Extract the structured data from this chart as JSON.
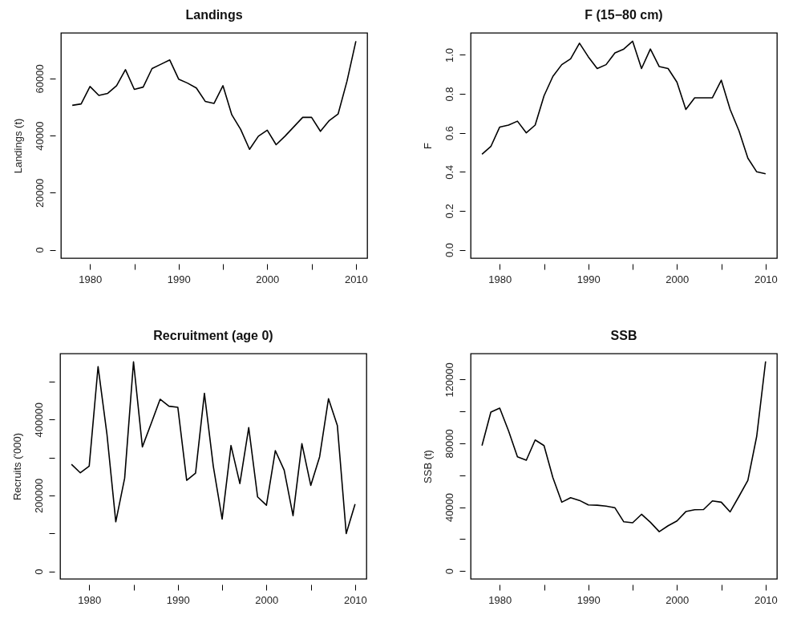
{
  "chart_data": [
    {
      "type": "line",
      "title": "Landings",
      "ylabel": "Landings (t)",
      "color": "#000000",
      "x": [
        1978,
        1979,
        1980,
        1981,
        1982,
        1983,
        1984,
        1985,
        1986,
        1987,
        1988,
        1989,
        1990,
        1991,
        1992,
        1993,
        1994,
        1995,
        1996,
        1997,
        1998,
        1999,
        2000,
        2001,
        2002,
        2003,
        2004,
        2005,
        2006,
        2007,
        2008,
        2009,
        2010
      ],
      "values": [
        50600,
        51100,
        57200,
        54100,
        54800,
        57500,
        63100,
        56200,
        57000,
        63500,
        65000,
        66500,
        59800,
        58400,
        56700,
        52000,
        51300,
        57500,
        47300,
        42200,
        35200,
        39800,
        41900,
        36800,
        39800,
        43100,
        46400,
        46400,
        41500,
        45300,
        47600,
        59100,
        73100
      ],
      "xlim": [
        1976.72,
        2011.28
      ],
      "xticks": [
        1980,
        {
          "value": 1985,
          "label": null
        },
        1990,
        {
          "value": 1995,
          "label": null
        },
        2000,
        {
          "value": 2005,
          "label": null
        },
        2010
      ],
      "ylim": [
        -2950,
        76000
      ],
      "yticks": [
        0,
        20000,
        40000,
        60000
      ]
    },
    {
      "type": "line",
      "title": "F (15−80 cm)",
      "ylabel": "F",
      "color": "#000000",
      "x": [
        1978,
        1979,
        1980,
        1981,
        1982,
        1983,
        1984,
        1985,
        1986,
        1987,
        1988,
        1989,
        1990,
        1991,
        1992,
        1993,
        1994,
        1995,
        1996,
        1997,
        1998,
        1999,
        2000,
        2001,
        2002,
        2003,
        2004,
        2005,
        2006,
        2007,
        2008,
        2009,
        2010
      ],
      "values": [
        0.49,
        0.53,
        0.63,
        0.64,
        0.66,
        0.6,
        0.64,
        0.79,
        0.89,
        0.95,
        0.98,
        1.06,
        0.99,
        0.93,
        0.95,
        1.01,
        1.03,
        1.07,
        0.93,
        1.03,
        0.94,
        0.93,
        0.86,
        0.72,
        0.78,
        0.78,
        0.78,
        0.87,
        0.72,
        0.61,
        0.47,
        0.4,
        0.39
      ],
      "xlim": [
        1976.72,
        2011.28
      ],
      "xticks": [
        1980,
        {
          "value": 1985,
          "label": null
        },
        1990,
        {
          "value": 1995,
          "label": null
        },
        2000,
        {
          "value": 2005,
          "label": null
        },
        2010
      ],
      "ylim": [
        -0.043,
        1.113
      ],
      "yticks": [
        {
          "value": 0,
          "label": "0.0"
        },
        0.2,
        0.4,
        0.6,
        0.8,
        {
          "value": 1,
          "label": "1.0"
        }
      ]
    },
    {
      "type": "line",
      "title": "Recruitment (age 0)",
      "ylabel": "Recruits ('000)",
      "color": "#000000",
      "x": [
        1978,
        1979,
        1980,
        1981,
        1982,
        1983,
        1984,
        1985,
        1986,
        1987,
        1988,
        1989,
        1990,
        1991,
        1992,
        1993,
        1994,
        1995,
        1996,
        1997,
        1998,
        1999,
        2000,
        2001,
        2002,
        2003,
        2004,
        2005,
        2006,
        2007,
        2008,
        2009,
        2010
      ],
      "values": [
        282000,
        259600,
        277300,
        539700,
        362000,
        130500,
        245500,
        552400,
        328000,
        390000,
        453600,
        435300,
        432500,
        239900,
        258900,
        469200,
        277300,
        137600,
        331600,
        231400,
        378800,
        196100,
        174300,
        318200,
        266700,
        146700,
        336500,
        226500,
        302000,
        455000,
        384500,
        99500,
        177100
      ],
      "xlim": [
        1976.72,
        2011.28
      ],
      "xticks": [
        1980,
        {
          "value": 1985,
          "label": null
        },
        1990,
        {
          "value": 1995,
          "label": null
        },
        2000,
        {
          "value": 2005,
          "label": null
        },
        2010
      ],
      "ylim": [
        -20000,
        574000
      ],
      "yticks": [
        0,
        {
          "value": 100000,
          "label": null
        },
        200000,
        {
          "value": 300000,
          "label": null
        },
        400000,
        {
          "value": 500000,
          "label": null
        }
      ]
    },
    {
      "type": "line",
      "title": "SSB",
      "ylabel": "SSB (t)",
      "color": "#000000",
      "x": [
        1978,
        1979,
        1980,
        1981,
        1982,
        1983,
        1984,
        1985,
        1986,
        1987,
        1988,
        1989,
        1990,
        1991,
        1992,
        1993,
        1994,
        1995,
        1996,
        1997,
        1998,
        1999,
        2000,
        2001,
        2002,
        2003,
        2004,
        2005,
        2006,
        2007,
        2008,
        2009,
        2010
      ],
      "values": [
        78600,
        99600,
        102100,
        87800,
        71600,
        69400,
        82100,
        78600,
        58500,
        43100,
        45900,
        44200,
        41400,
        41200,
        40600,
        39600,
        30800,
        30200,
        35500,
        30500,
        24600,
        28300,
        31300,
        37200,
        38400,
        38500,
        43900,
        43100,
        37000,
        46800,
        56800,
        84500,
        131400
      ],
      "xlim": [
        1976.72,
        2011.28
      ],
      "xticks": [
        1980,
        {
          "value": 1985,
          "label": null
        },
        1990,
        {
          "value": 1995,
          "label": null
        },
        2000,
        {
          "value": 2005,
          "label": null
        },
        2010
      ],
      "ylim": [
        -5000,
        136300
      ],
      "yticks": [
        0,
        {
          "value": 20000,
          "label": null
        },
        40000,
        {
          "value": 60000,
          "label": null
        },
        80000,
        {
          "value": 100000,
          "label": null
        },
        120000
      ]
    }
  ]
}
